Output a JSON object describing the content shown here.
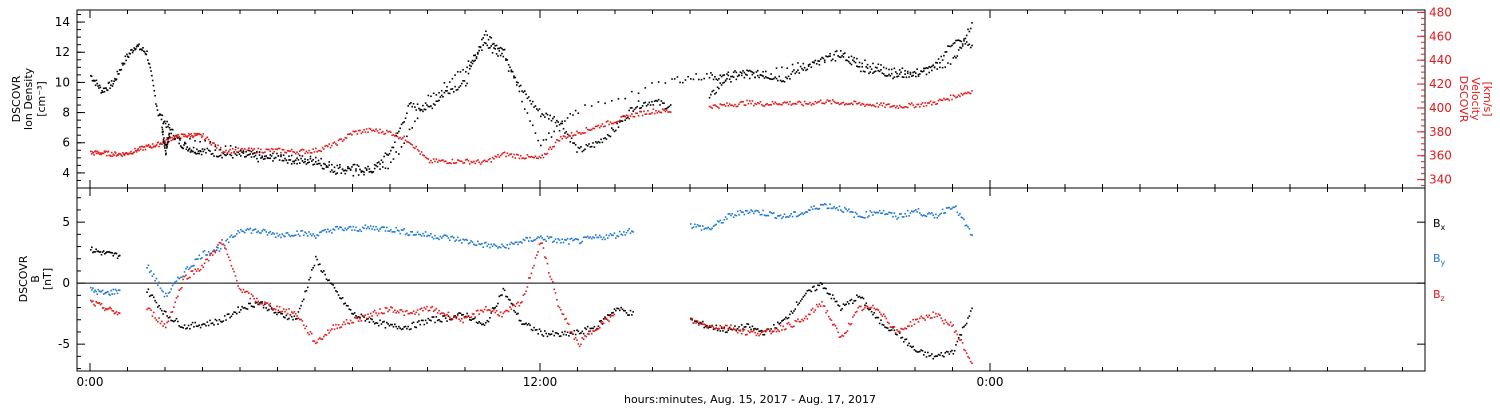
{
  "chart_data": [
    {
      "type": "scatter",
      "panel": "top",
      "ylabel_left": [
        "DSCOVR",
        "Ion Density",
        "[cm⁻³]"
      ],
      "ylabel_right": [
        "DSCOVR",
        "Velocity",
        "[km/s]"
      ],
      "left_axis": {
        "ylim": [
          3,
          14.8
        ],
        "ticks": [
          "4",
          "6",
          "8",
          "10",
          "12",
          "14"
        ]
      },
      "right_axis": {
        "ylim": [
          333,
          482
        ],
        "ticks": [
          "340",
          "360",
          "380",
          "400",
          "420",
          "440",
          "460",
          "480"
        ],
        "color": "#e31a1c"
      },
      "x_ticks": [
        "0:00",
        "12:00",
        "0:00"
      ],
      "series": [
        {
          "color": "#000000",
          "axis": "left",
          "x": [
            0.0,
            0.3,
            0.6,
            0.9,
            1.2,
            1.5,
            1.8,
            2.1,
            2.4,
            2.7,
            3.0,
            3.5,
            4.0,
            4.5,
            5.0,
            5.5,
            6.0,
            6.5,
            7.0,
            7.5,
            8.0,
            8.5,
            9.0,
            9.5,
            10.0,
            10.5,
            11.0,
            11.5,
            12.0,
            12.5,
            13.0,
            13.5,
            14.0,
            14.5,
            15.0,
            15.5,
            16.0,
            16.5,
            17.0,
            17.5,
            18.0,
            18.5,
            19.0,
            19.5,
            20.0,
            20.5,
            21.0,
            21.5,
            22.0,
            22.5,
            23.0,
            23.5
          ],
          "y": [
            10.5,
            9.5,
            10.0,
            11.5,
            12.5,
            12.0,
            8.0,
            7.0,
            6.0,
            5.6,
            5.5,
            5.3,
            5.2,
            5.0,
            5.1,
            4.8,
            4.8,
            4.2,
            4.4,
            4.2,
            5.5,
            8.5,
            8.3,
            9.5,
            10.0,
            13.3,
            12.2,
            9.5,
            8.0,
            7.5,
            5.5,
            6.0,
            7.0,
            8.5,
            8.8,
            8.4,
            null,
            9.0,
            10.5,
            10.7,
            10.5,
            10.3,
            11.0,
            11.5,
            12.0,
            11.0,
            10.8,
            10.5,
            10.7,
            11.0,
            12.8,
            12.5
          ]
        },
        {
          "color": "#e31a1c",
          "axis": "right",
          "x": [
            0.0,
            0.3,
            0.6,
            0.9,
            1.2,
            1.5,
            1.8,
            2.1,
            2.4,
            2.7,
            3.0,
            3.5,
            4.0,
            4.5,
            5.0,
            5.5,
            6.0,
            6.5,
            7.0,
            7.5,
            8.0,
            8.5,
            9.0,
            9.5,
            10.0,
            10.5,
            11.0,
            11.5,
            12.0,
            12.5,
            13.0,
            13.5,
            14.0,
            14.5,
            15.0,
            15.5,
            16.0,
            16.5,
            17.0,
            17.5,
            18.0,
            18.5,
            19.0,
            19.5,
            20.0,
            20.5,
            21.0,
            21.5,
            22.0,
            22.5,
            23.0,
            23.5
          ],
          "y": [
            363,
            363,
            362,
            362,
            365,
            368,
            370,
            375,
            377,
            378,
            377,
            365,
            365,
            365,
            365,
            364,
            365,
            370,
            380,
            382,
            380,
            373,
            356,
            356,
            356,
            355,
            362,
            360,
            358,
            375,
            380,
            385,
            390,
            395,
            398,
            398,
            null,
            402,
            403,
            405,
            404,
            405,
            404,
            406,
            405,
            404,
            403,
            402,
            403,
            405,
            410,
            415
          ]
        },
        {
          "color": "#000000",
          "axis": "left",
          "x": [
            1.9,
            2.0,
            2.1,
            4.0,
            5.0,
            6.0,
            7.0,
            8.0,
            9.0,
            10.0,
            10.5,
            11.0,
            12.0,
            13.0,
            15.5,
            16.5,
            17.0,
            18.0,
            20.0,
            21.0,
            22.0,
            23.0,
            23.5
          ],
          "y": [
            7.0,
            5.5,
            6.5,
            5.5,
            5.1,
            5.0,
            4.0,
            4.6,
            9.0,
            11.0,
            12.5,
            11.8,
            6.0,
            8.2,
            10.2,
            10.5,
            10.3,
            10.6,
            11.8,
            11.2,
            10.5,
            11.5,
            14.0
          ]
        }
      ]
    },
    {
      "type": "scatter",
      "panel": "bottom",
      "ylabel_left": [
        "DSCOVR",
        "B",
        "[nT]"
      ],
      "ylim": [
        -7.2,
        7.8
      ],
      "y_ticks": [
        "-5",
        "0",
        "5"
      ],
      "x_ticks": [
        "0:00",
        "12:00",
        "0:00"
      ],
      "xlabel": "hours:minutes, Aug. 15, 2017 - Aug. 17, 2017",
      "legend": [
        {
          "label": "B",
          "sub": "x",
          "color": "#000000"
        },
        {
          "label": "B",
          "sub": "y",
          "color": "#1f78d1"
        },
        {
          "label": "B",
          "sub": "z",
          "color": "#e31a1c"
        }
      ],
      "series": [
        {
          "name": "Bx",
          "color": "#000000",
          "x": [
            0.0,
            0.4,
            0.8,
            1.0,
            1.5,
            2.0,
            2.5,
            3.0,
            3.5,
            4.0,
            4.5,
            5.0,
            5.5,
            6.0,
            6.5,
            7.0,
            7.5,
            8.0,
            8.5,
            9.0,
            9.5,
            10.0,
            10.5,
            11.0,
            11.5,
            12.0,
            12.5,
            13.0,
            13.5,
            14.0,
            14.5,
            15.0,
            15.5,
            16.0,
            16.5,
            17.0,
            17.5,
            18.0,
            18.5,
            19.0,
            19.5,
            20.0,
            20.5,
            21.0,
            21.5,
            22.0,
            22.5,
            23.0,
            23.5
          ],
          "y": [
            2.8,
            2.5,
            2.3,
            null,
            -0.5,
            -2.5,
            -3.5,
            -3.3,
            -3.0,
            -2.0,
            -1.5,
            -2.5,
            -2.8,
            2.0,
            -0.5,
            -2.5,
            -3.0,
            -3.5,
            -3.5,
            -3.0,
            -2.8,
            -2.5,
            -3.5,
            -0.5,
            -3.2,
            -4.0,
            -4.2,
            -4.0,
            -3.5,
            -2.0,
            -2.5,
            null,
            null,
            -3.0,
            -3.5,
            -3.8,
            -3.5,
            -4.0,
            -3.0,
            -1.0,
            0.0,
            -2.0,
            -1.0,
            -3.0,
            -4.0,
            -5.5,
            -6.0,
            -5.5,
            -2.0
          ]
        },
        {
          "name": "By",
          "color": "#1f78d1",
          "x": [
            0.0,
            0.4,
            0.8,
            1.0,
            1.5,
            2.0,
            2.5,
            3.0,
            3.5,
            4.0,
            4.5,
            5.0,
            5.5,
            6.0,
            6.5,
            7.0,
            7.5,
            8.0,
            8.5,
            9.0,
            9.5,
            10.0,
            10.5,
            11.0,
            11.5,
            12.0,
            12.5,
            13.0,
            13.5,
            14.0,
            14.5,
            15.0,
            15.5,
            16.0,
            16.5,
            17.0,
            17.5,
            18.0,
            18.5,
            19.0,
            19.5,
            20.0,
            20.5,
            21.0,
            21.5,
            22.0,
            22.5,
            23.0,
            23.5
          ],
          "y": [
            -0.5,
            -0.8,
            -0.5,
            null,
            1.5,
            -1.0,
            1.0,
            2.5,
            3.0,
            4.5,
            4.3,
            4.0,
            4.2,
            4.0,
            4.5,
            4.5,
            4.6,
            4.5,
            4.2,
            4.0,
            3.8,
            3.5,
            3.2,
            3.0,
            3.5,
            3.8,
            3.5,
            3.5,
            3.8,
            4.0,
            4.5,
            null,
            null,
            4.8,
            4.5,
            5.5,
            6.0,
            5.8,
            5.5,
            5.8,
            6.5,
            6.2,
            5.5,
            6.0,
            5.5,
            6.0,
            5.5,
            6.5,
            4.0
          ]
        },
        {
          "name": "Bz",
          "color": "#e31a1c",
          "x": [
            0.0,
            0.4,
            0.8,
            1.0,
            1.5,
            2.0,
            2.5,
            3.0,
            3.5,
            4.0,
            4.5,
            5.0,
            5.5,
            6.0,
            6.5,
            7.0,
            7.5,
            8.0,
            8.5,
            9.0,
            9.5,
            10.0,
            10.5,
            11.0,
            11.5,
            12.0,
            12.5,
            13.0,
            13.5,
            14.0,
            14.5,
            15.0,
            15.5,
            16.0,
            16.5,
            17.0,
            17.5,
            18.0,
            18.5,
            19.0,
            19.5,
            20.0,
            20.5,
            21.0,
            21.5,
            22.0,
            22.5,
            23.0,
            23.5
          ],
          "y": [
            -1.5,
            -2.0,
            -2.5,
            null,
            -2.0,
            -3.5,
            0.5,
            1.5,
            3.5,
            -0.5,
            -1.5,
            -2.0,
            -2.5,
            -4.8,
            -3.5,
            -3.0,
            -2.5,
            -2.0,
            -2.5,
            -2.0,
            -2.5,
            -3.0,
            -2.0,
            -2.5,
            -1.5,
            3.5,
            -2.0,
            -5.0,
            -3.5,
            -2.5,
            null,
            null,
            null,
            -3.0,
            -3.5,
            -3.5,
            -4.0,
            -4.0,
            -3.5,
            -3.0,
            -1.5,
            -4.5,
            -2.0,
            -2.0,
            -4.0,
            -3.0,
            -2.5,
            -3.5,
            -6.5
          ]
        }
      ]
    }
  ]
}
